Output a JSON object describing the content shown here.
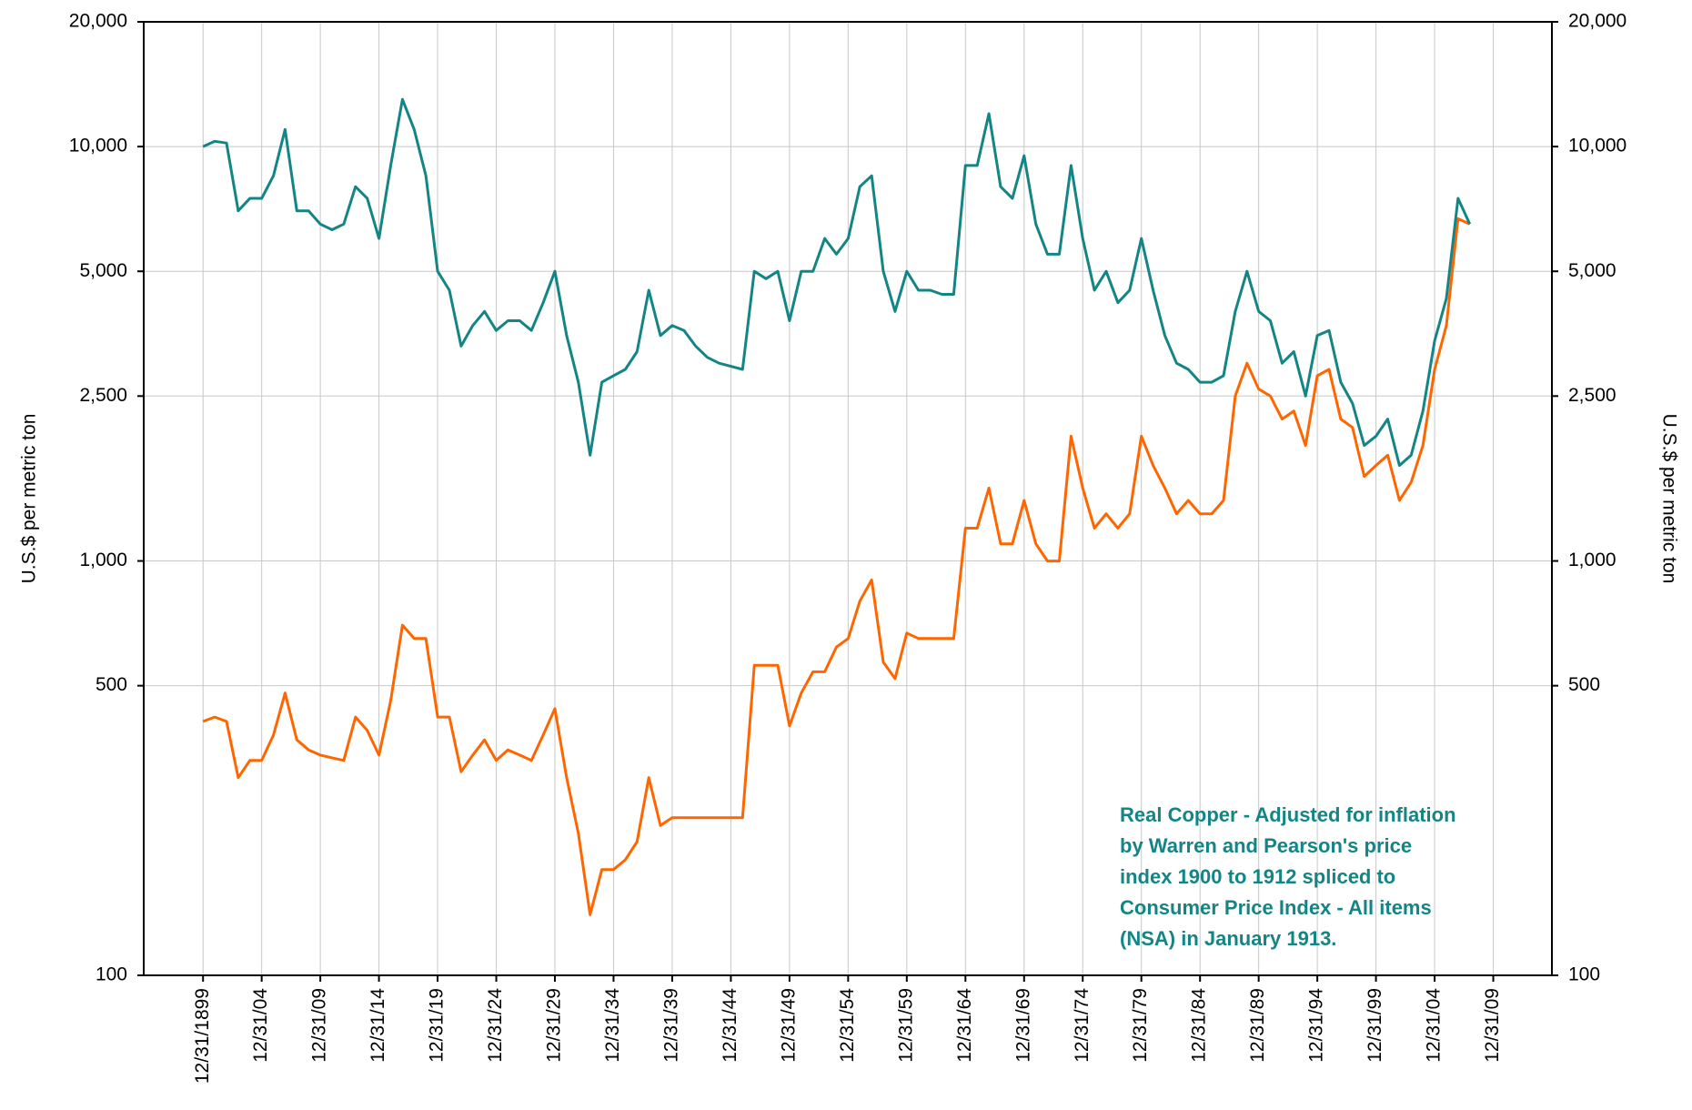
{
  "chart_data": {
    "type": "line",
    "y_label": "U.S.$ per metric ton",
    "y2_label": "U.S.$ per metric ton",
    "annotation": [
      "Real Copper - Adjusted for inflation",
      "by Warren and Pearson's price",
      "index 1900 to 1912 spliced to",
      "Consumer Price Index - All items",
      "(NSA) in January 1913."
    ],
    "annotation_color": "#138585",
    "log_scale": true,
    "grid": true,
    "x": [
      "1899-12-31",
      "1900-12-31",
      "1901-12-31",
      "1902-12-31",
      "1903-12-31",
      "1904-12-31",
      "1905-12-31",
      "1906-12-31",
      "1907-12-31",
      "1908-12-31",
      "1909-12-31",
      "1910-12-31",
      "1911-12-31",
      "1912-12-31",
      "1913-12-31",
      "1914-12-31",
      "1915-12-31",
      "1916-12-31",
      "1917-12-31",
      "1918-12-31",
      "1919-12-31",
      "1920-12-31",
      "1921-12-31",
      "1922-12-31",
      "1923-12-31",
      "1924-12-31",
      "1925-12-31",
      "1926-12-31",
      "1927-12-31",
      "1928-12-31",
      "1929-12-31",
      "1930-12-31",
      "1931-12-31",
      "1932-12-31",
      "1933-12-31",
      "1934-12-31",
      "1935-12-31",
      "1936-12-31",
      "1937-12-31",
      "1938-12-31",
      "1939-12-31",
      "1940-12-31",
      "1941-12-31",
      "1942-12-31",
      "1943-12-31",
      "1944-12-31",
      "1945-12-31",
      "1946-12-31",
      "1947-12-31",
      "1948-12-31",
      "1949-12-31",
      "1950-12-31",
      "1951-12-31",
      "1952-12-31",
      "1953-12-31",
      "1954-12-31",
      "1955-12-31",
      "1956-12-31",
      "1957-12-31",
      "1958-12-31",
      "1959-12-31",
      "1960-12-31",
      "1961-12-31",
      "1962-12-31",
      "1963-12-31",
      "1964-12-31",
      "1965-12-31",
      "1966-12-31",
      "1967-12-31",
      "1968-12-31",
      "1969-12-31",
      "1970-12-31",
      "1971-12-31",
      "1972-12-31",
      "1973-12-31",
      "1974-12-31",
      "1975-12-31",
      "1976-12-31",
      "1977-12-31",
      "1978-12-31",
      "1979-12-31",
      "1980-12-31",
      "1981-12-31",
      "1982-12-31",
      "1983-12-31",
      "1984-12-31",
      "1985-12-31",
      "1986-12-31",
      "1987-12-31",
      "1988-12-31",
      "1989-12-31",
      "1990-12-31",
      "1991-12-31",
      "1992-12-31",
      "1993-12-31",
      "1994-12-31",
      "1995-12-31",
      "1996-12-31",
      "1997-12-31",
      "1998-12-31",
      "1999-12-31",
      "2000-12-31",
      "2001-12-31",
      "2002-12-31",
      "2003-12-31",
      "2004-12-31",
      "2005-12-31",
      "2006-12-31",
      "2007-12-31"
    ],
    "series": [
      {
        "color": "#138585",
        "values": [
          10000,
          10300,
          10200,
          7000,
          7500,
          7500,
          8500,
          11000,
          7000,
          7000,
          6500,
          6300,
          6500,
          8000,
          7500,
          6000,
          9000,
          13000,
          11000,
          8500,
          5000,
          4500,
          3300,
          3700,
          4000,
          3600,
          3800,
          3800,
          3600,
          4200,
          5000,
          3500,
          2700,
          1800,
          2700,
          2800,
          2900,
          3200,
          4500,
          3500,
          3700,
          3600,
          3300,
          3100,
          3000,
          2950,
          2900,
          5000,
          4800,
          5000,
          3800,
          5000,
          5000,
          6000,
          5500,
          6000,
          8000,
          8500,
          5000,
          4000,
          5000,
          4500,
          4500,
          4400,
          4400,
          9000,
          9000,
          12000,
          8000,
          7500,
          9500,
          6500,
          5500,
          5500,
          9000,
          6000,
          4500,
          5000,
          4200,
          4500,
          6000,
          4500,
          3500,
          3000,
          2900,
          2700,
          2700,
          2800,
          4000,
          5000,
          4000,
          3800,
          3000,
          3200,
          2500,
          3500,
          3600,
          2700,
          2400,
          1900,
          2000,
          2200,
          1700,
          1800,
          2300,
          3400,
          4300,
          7500,
          6500
        ]
      },
      {
        "color": "#ff6600",
        "values": [
          410,
          420,
          410,
          300,
          330,
          330,
          380,
          480,
          370,
          350,
          340,
          335,
          330,
          420,
          390,
          340,
          460,
          700,
          650,
          650,
          420,
          420,
          310,
          340,
          370,
          330,
          350,
          340,
          330,
          380,
          440,
          300,
          220,
          140,
          180,
          180,
          190,
          210,
          300,
          230,
          240,
          240,
          240,
          240,
          240,
          240,
          240,
          560,
          560,
          560,
          400,
          480,
          540,
          540,
          620,
          650,
          800,
          900,
          570,
          520,
          670,
          650,
          650,
          650,
          650,
          1200,
          1200,
          1500,
          1100,
          1100,
          1400,
          1100,
          1000,
          1000,
          2000,
          1500,
          1200,
          1300,
          1200,
          1300,
          2000,
          1700,
          1500,
          1300,
          1400,
          1300,
          1300,
          1400,
          2500,
          3000,
          2600,
          2500,
          2200,
          2300,
          1900,
          2800,
          2900,
          2200,
          2100,
          1600,
          1700,
          1800,
          1400,
          1550,
          1900,
          2900,
          3700,
          6700,
          6500
        ]
      }
    ],
    "xlim": [
      "1894-12-10",
      "2014-12-31"
    ],
    "xticks": [
      {
        "value": "1899-12-31",
        "label": "12/31/1899"
      },
      {
        "value": "1904-12-31",
        "label": "12/31/04"
      },
      {
        "value": "1909-12-31",
        "label": "12/31/09"
      },
      {
        "value": "1914-12-31",
        "label": "12/31/14"
      },
      {
        "value": "1919-12-31",
        "label": "12/31/19"
      },
      {
        "value": "1924-12-31",
        "label": "12/31/24"
      },
      {
        "value": "1929-12-31",
        "label": "12/31/29"
      },
      {
        "value": "1934-12-31",
        "label": "12/31/34"
      },
      {
        "value": "1939-12-31",
        "label": "12/31/39"
      },
      {
        "value": "1944-12-31",
        "label": "12/31/44"
      },
      {
        "value": "1949-12-31",
        "label": "12/31/49"
      },
      {
        "value": "1954-12-31",
        "label": "12/31/54"
      },
      {
        "value": "1959-12-31",
        "label": "12/31/59"
      },
      {
        "value": "1964-12-31",
        "label": "12/31/64"
      },
      {
        "value": "1969-12-31",
        "label": "12/31/69"
      },
      {
        "value": "1974-12-31",
        "label": "12/31/74"
      },
      {
        "value": "1979-12-31",
        "label": "12/31/79"
      },
      {
        "value": "1984-12-31",
        "label": "12/31/84"
      },
      {
        "value": "1989-12-31",
        "label": "12/31/89"
      },
      {
        "value": "1994-12-31",
        "label": "12/31/94"
      },
      {
        "value": "1999-12-31",
        "label": "12/31/99"
      },
      {
        "value": "2004-12-31",
        "label": "12/31/04"
      },
      {
        "value": "2009-12-31",
        "label": "12/31/09"
      }
    ],
    "ylim": [
      100,
      20000
    ],
    "yticks": [
      100,
      500,
      {
        "value": 1000,
        "label": "1,000"
      },
      {
        "value": 2500,
        "label": "2,500"
      },
      {
        "value": 5000,
        "label": "5,000"
      },
      {
        "value": 10000,
        "label": "10,000"
      },
      {
        "value": 20000,
        "label": "20,000"
      }
    ],
    "y2lim": [
      100,
      20000
    ],
    "y2ticks": [
      100,
      500,
      {
        "value": 1000,
        "label": "1,000"
      },
      {
        "value": 2500,
        "label": "2,500"
      },
      {
        "value": 5000,
        "label": "5,000"
      },
      {
        "value": 10000,
        "label": "10,000"
      },
      {
        "value": 20000,
        "label": "20,000"
      }
    ]
  }
}
